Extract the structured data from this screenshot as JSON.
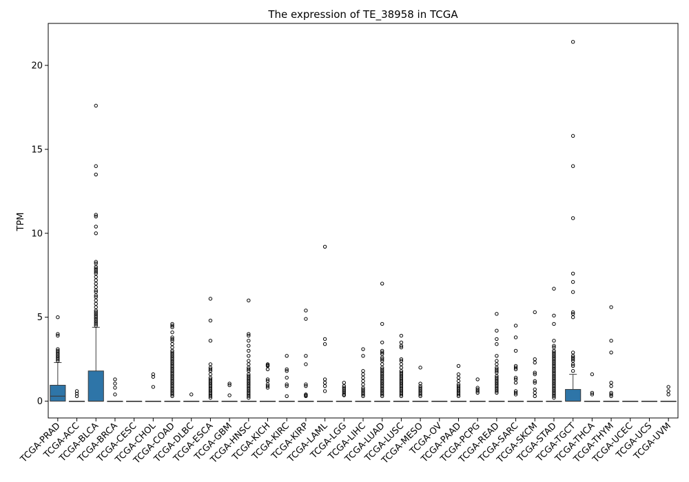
{
  "chart_data": {
    "type": "box",
    "title": "The expression of TE_38958 in TCGA",
    "xlabel": "",
    "ylabel": "TPM",
    "ylim": [
      -1.0,
      22.5
    ],
    "yticks": [
      0,
      5,
      10,
      15,
      20
    ],
    "grid": false,
    "legend": "none",
    "box_color": "#2e75a8",
    "categories": [
      "TCGA-PRAD",
      "TCGA-ACC",
      "TCGA-BLCA",
      "TCGA-BRCA",
      "TCGA-CESC",
      "TCGA-CHOL",
      "TCGA-COAD",
      "TCGA-DLBC",
      "TCGA-ESCA",
      "TCGA-GBM",
      "TCGA-HNSC",
      "TCGA-KICH",
      "TCGA-KIRC",
      "TCGA-KIRP",
      "TCGA-LAML",
      "TCGA-LGG",
      "TCGA-LIHC",
      "TCGA-LUAD",
      "TCGA-LUSC",
      "TCGA-MESO",
      "TCGA-OV",
      "TCGA-PAAD",
      "TCGA-PCPG",
      "TCGA-READ",
      "TCGA-SARC",
      "TCGA-SKCM",
      "TCGA-STAD",
      "TCGA-TGCT",
      "TCGA-THCA",
      "TCGA-THYM",
      "TCGA-UCEC",
      "TCGA-UCS",
      "TCGA-UVM"
    ],
    "boxes": [
      {
        "q1": 0,
        "median": 0.3,
        "q3": 0.95,
        "whisker_low": 0,
        "whisker_high": 2.3,
        "outliers": [
          5.0,
          4.0,
          3.9,
          3.1,
          3.0,
          2.9,
          2.8,
          2.7,
          2.6,
          2.5,
          2.4
        ]
      },
      {
        "q1": 0,
        "median": 0,
        "q3": 0,
        "whisker_low": 0,
        "whisker_high": 0,
        "outliers": [
          0.6,
          0.45,
          0.3
        ]
      },
      {
        "q1": 0,
        "median": 0,
        "q3": 1.8,
        "whisker_low": 0,
        "whisker_high": 4.4,
        "outliers": [
          17.6,
          14.0,
          13.5,
          11.1,
          11.0,
          10.4,
          10.0,
          8.3,
          8.2,
          8.0,
          7.9,
          7.8,
          7.7,
          7.6,
          7.4,
          7.2,
          7.0,
          6.8,
          6.6,
          6.5,
          6.3,
          6.2,
          6.0,
          5.8,
          5.6,
          5.4,
          5.3,
          5.2,
          5.1,
          5.0,
          4.9,
          4.8,
          4.7,
          4.6,
          4.5
        ]
      },
      {
        "q1": 0,
        "median": 0,
        "q3": 0,
        "whisker_low": 0,
        "whisker_high": 0,
        "outliers": [
          1.3,
          1.05,
          0.8,
          0.4
        ]
      },
      {
        "q1": 0,
        "median": 0,
        "q3": 0,
        "whisker_low": 0,
        "whisker_high": 0,
        "outliers": []
      },
      {
        "q1": 0,
        "median": 0,
        "q3": 0,
        "whisker_low": 0,
        "whisker_high": 0,
        "outliers": [
          1.6,
          1.45,
          0.85
        ]
      },
      {
        "q1": 0,
        "median": 0,
        "q3": 0,
        "whisker_low": 0,
        "whisker_high": 0,
        "outliers": [
          4.6,
          4.5,
          4.4,
          4.1,
          3.8,
          3.7,
          3.6,
          3.4,
          3.2,
          3.0,
          2.9,
          2.8,
          2.7,
          2.6,
          2.5,
          2.4,
          2.3,
          2.2,
          2.1,
          2.0,
          1.9,
          1.8,
          1.7,
          1.6,
          1.5,
          1.4,
          1.3,
          1.2,
          1.1,
          1.0,
          0.9,
          0.8,
          0.7,
          0.6,
          0.5,
          0.4,
          0.3
        ]
      },
      {
        "q1": 0,
        "median": 0,
        "q3": 0,
        "whisker_low": 0,
        "whisker_high": 0,
        "outliers": [
          0.4
        ]
      },
      {
        "q1": 0,
        "median": 0,
        "q3": 0,
        "whisker_low": 0,
        "whisker_high": 0,
        "outliers": [
          6.1,
          4.8,
          3.6,
          2.2,
          2.0,
          1.9,
          1.8,
          1.6,
          1.4,
          1.3,
          1.2,
          1.1,
          1.0,
          0.9,
          0.8,
          0.7,
          0.6,
          0.5,
          0.4,
          0.3,
          0.2
        ]
      },
      {
        "q1": 0,
        "median": 0,
        "q3": 0,
        "whisker_low": 0,
        "whisker_high": 0,
        "outliers": [
          1.05,
          0.95,
          0.35
        ]
      },
      {
        "q1": 0,
        "median": 0,
        "q3": 0,
        "whisker_low": 0,
        "whisker_high": 0,
        "outliers": [
          6.0,
          4.0,
          3.9,
          3.6,
          3.3,
          3.0,
          2.7,
          2.4,
          2.2,
          2.0,
          1.9,
          1.8,
          1.6,
          1.5,
          1.4,
          1.3,
          1.2,
          1.1,
          1.0,
          0.9,
          0.8,
          0.7,
          0.6,
          0.5,
          0.4,
          0.3,
          0.2
        ]
      },
      {
        "q1": 0,
        "median": 0,
        "q3": 0,
        "whisker_low": 0,
        "whisker_high": 0,
        "outliers": [
          2.2,
          2.15,
          2.1,
          1.9,
          1.3,
          1.2,
          1.0,
          0.9,
          0.8
        ]
      },
      {
        "q1": 0,
        "median": 0,
        "q3": 0,
        "whisker_low": 0,
        "whisker_high": 0,
        "outliers": [
          2.7,
          1.9,
          1.8,
          1.4,
          1.0,
          0.9,
          0.3
        ]
      },
      {
        "q1": 0,
        "median": 0,
        "q3": 0,
        "whisker_low": 0,
        "whisker_high": 0,
        "outliers": [
          5.4,
          4.9,
          2.7,
          2.2,
          1.0,
          0.9,
          0.4,
          0.35,
          0.3
        ]
      },
      {
        "q1": 0,
        "median": 0,
        "q3": 0,
        "whisker_low": 0,
        "whisker_high": 0,
        "outliers": [
          9.2,
          3.7,
          3.4,
          1.3,
          1.1,
          0.9,
          0.6
        ]
      },
      {
        "q1": 0,
        "median": 0,
        "q3": 0,
        "whisker_low": 0,
        "whisker_high": 0,
        "outliers": [
          1.1,
          0.9,
          0.8,
          0.7,
          0.6,
          0.5,
          0.4,
          0.35
        ]
      },
      {
        "q1": 0,
        "median": 0,
        "q3": 0,
        "whisker_low": 0,
        "whisker_high": 0,
        "outliers": [
          3.1,
          2.7,
          1.8,
          1.6,
          1.4,
          1.2,
          1.0,
          0.8,
          0.7,
          0.6,
          0.5,
          0.4,
          0.3
        ]
      },
      {
        "q1": 0,
        "median": 0,
        "q3": 0,
        "whisker_low": 0,
        "whisker_high": 0,
        "outliers": [
          7.0,
          4.6,
          3.5,
          3.0,
          2.9,
          2.8,
          2.6,
          2.5,
          2.4,
          2.2,
          2.0,
          1.9,
          1.8,
          1.7,
          1.6,
          1.5,
          1.4,
          1.3,
          1.2,
          1.1,
          1.0,
          0.9,
          0.8,
          0.7,
          0.6,
          0.5,
          0.4,
          0.3
        ]
      },
      {
        "q1": 0,
        "median": 0,
        "q3": 0,
        "whisker_low": 0,
        "whisker_high": 0,
        "outliers": [
          3.9,
          3.5,
          3.3,
          3.2,
          2.5,
          2.4,
          2.2,
          2.0,
          1.8,
          1.7,
          1.6,
          1.5,
          1.4,
          1.3,
          1.2,
          1.1,
          1.0,
          0.9,
          0.8,
          0.7,
          0.6,
          0.5,
          0.4,
          0.3
        ]
      },
      {
        "q1": 0,
        "median": 0,
        "q3": 0,
        "whisker_low": 0,
        "whisker_high": 0,
        "outliers": [
          2.0,
          1.05,
          0.9,
          0.8,
          0.7,
          0.6,
          0.5,
          0.4,
          0.3
        ]
      },
      {
        "q1": 0,
        "median": 0,
        "q3": 0,
        "whisker_low": 0,
        "whisker_high": 0,
        "outliers": []
      },
      {
        "q1": 0,
        "median": 0,
        "q3": 0,
        "whisker_low": 0,
        "whisker_high": 0,
        "outliers": [
          2.1,
          1.6,
          1.4,
          1.2,
          1.0,
          0.9,
          0.8,
          0.7,
          0.6,
          0.5,
          0.4,
          0.3
        ]
      },
      {
        "q1": 0,
        "median": 0,
        "q3": 0,
        "whisker_low": 0,
        "whisker_high": 0,
        "outliers": [
          1.3,
          0.8,
          0.7,
          0.6,
          0.5
        ]
      },
      {
        "q1": 0,
        "median": 0,
        "q3": 0,
        "whisker_low": 0,
        "whisker_high": 0,
        "outliers": [
          5.2,
          4.2,
          3.7,
          3.4,
          2.7,
          2.4,
          2.2,
          2.0,
          1.9,
          1.8,
          1.7,
          1.5,
          1.4,
          1.3,
          1.2,
          1.1,
          1.0,
          0.9,
          0.8,
          0.7,
          0.6,
          0.5
        ]
      },
      {
        "q1": 0,
        "median": 0,
        "q3": 0,
        "whisker_low": 0,
        "whisker_high": 0,
        "outliers": [
          4.5,
          3.8,
          3.0,
          2.1,
          2.0,
          1.9,
          1.4,
          1.3,
          1.1,
          0.6,
          0.5,
          0.4
        ]
      },
      {
        "q1": 0,
        "median": 0,
        "q3": 0,
        "whisker_low": 0,
        "whisker_high": 0,
        "outliers": [
          5.3,
          2.5,
          2.3,
          1.7,
          1.6,
          1.2,
          1.1,
          0.7,
          0.5,
          0.3
        ]
      },
      {
        "q1": 0,
        "median": 0,
        "q3": 0,
        "whisker_low": 0,
        "whisker_high": 0,
        "outliers": [
          6.7,
          5.1,
          4.6,
          3.6,
          3.3,
          3.2,
          3.0,
          2.9,
          2.8,
          2.7,
          2.6,
          2.5,
          2.4,
          2.3,
          2.2,
          2.1,
          2.0,
          1.9,
          1.8,
          1.7,
          1.6,
          1.5,
          1.4,
          1.3,
          1.2,
          1.1,
          1.0,
          0.9,
          0.8,
          0.7,
          0.6,
          0.5,
          0.4,
          0.3,
          0.2
        ]
      },
      {
        "q1": 0,
        "median": 0,
        "q3": 0.7,
        "whisker_low": 0,
        "whisker_high": 1.6,
        "outliers": [
          21.4,
          15.8,
          14.0,
          10.9,
          7.6,
          7.1,
          6.5,
          5.3,
          5.2,
          5.0,
          2.9,
          2.7,
          2.6,
          2.5,
          2.4,
          2.2,
          2.1,
          1.8
        ]
      },
      {
        "q1": 0,
        "median": 0,
        "q3": 0,
        "whisker_low": 0,
        "whisker_high": 0,
        "outliers": [
          1.6,
          0.5,
          0.4
        ]
      },
      {
        "q1": 0,
        "median": 0,
        "q3": 0,
        "whisker_low": 0,
        "whisker_high": 0,
        "outliers": [
          5.6,
          3.6,
          2.9,
          1.1,
          0.9,
          0.5,
          0.4,
          0.3
        ]
      },
      {
        "q1": 0,
        "median": 0,
        "q3": 0,
        "whisker_low": 0,
        "whisker_high": 0,
        "outliers": []
      },
      {
        "q1": 0,
        "median": 0,
        "q3": 0,
        "whisker_low": 0,
        "whisker_high": 0,
        "outliers": []
      },
      {
        "q1": 0,
        "median": 0,
        "q3": 0,
        "whisker_low": 0,
        "whisker_high": 0,
        "outliers": [
          0.85,
          0.6,
          0.4
        ]
      }
    ]
  }
}
